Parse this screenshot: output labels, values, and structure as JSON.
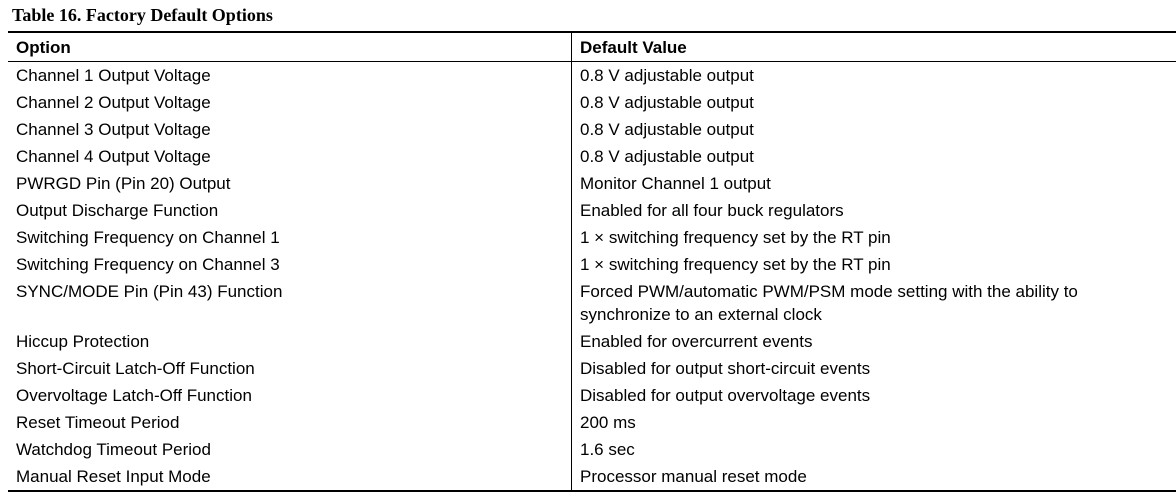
{
  "caption": "Table 16. Factory Default Options",
  "table": {
    "headers": {
      "option": "Option",
      "default_value": "Default Value"
    },
    "rows": [
      {
        "option": "Channel 1 Output Voltage",
        "default_value": "0.8 V adjustable output"
      },
      {
        "option": "Channel 2 Output Voltage",
        "default_value": "0.8 V adjustable output"
      },
      {
        "option": "Channel 3 Output Voltage",
        "default_value": "0.8 V adjustable output"
      },
      {
        "option": "Channel 4 Output Voltage",
        "default_value": "0.8 V adjustable output"
      },
      {
        "option": "PWRGD Pin (Pin 20) Output",
        "default_value": "Monitor Channel 1 output"
      },
      {
        "option": "Output Discharge Function",
        "default_value": "Enabled for all four buck regulators"
      },
      {
        "option": "Switching Frequency on Channel 1",
        "default_value": "1 × switching frequency set by the RT pin"
      },
      {
        "option": "Switching Frequency on Channel 3",
        "default_value": "1 × switching frequency set by the RT pin"
      },
      {
        "option": "SYNC/MODE Pin (Pin 43) Function",
        "default_value": "Forced PWM/automatic PWM/PSM mode setting with the ability to synchronize to an external clock"
      },
      {
        "option": "Hiccup Protection",
        "default_value": "Enabled for overcurrent events"
      },
      {
        "option": "Short-Circuit Latch-Off Function",
        "default_value": "Disabled for output short-circuit events"
      },
      {
        "option": "Overvoltage Latch-Off Function",
        "default_value": "Disabled for output overvoltage events"
      },
      {
        "option": "Reset Timeout Period",
        "default_value": "200 ms"
      },
      {
        "option": "Watchdog Timeout Period",
        "default_value": "1.6 sec"
      },
      {
        "option": "Manual Reset Input Mode",
        "default_value": "Processor manual reset mode"
      }
    ]
  }
}
